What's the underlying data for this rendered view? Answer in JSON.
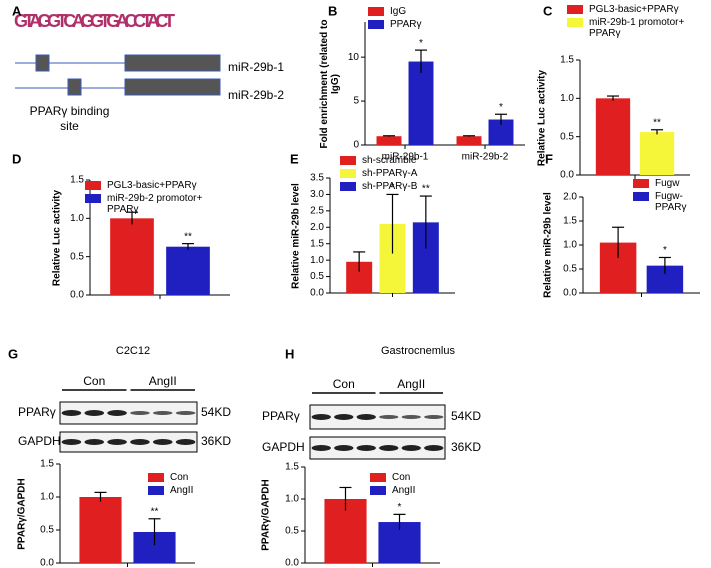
{
  "panel_labels": [
    "A",
    "B",
    "C",
    "D",
    "E",
    "F",
    "G",
    "H"
  ],
  "motif": {
    "sequence": "GTAGGTCAGGTGACCTACT"
  },
  "gene_diagram": {
    "genes": [
      "miR-29b-1",
      "miR-29b-2"
    ],
    "site_label": "PPARγ binding site"
  },
  "chart_data": [
    {
      "type": "bar",
      "y_label": "Fold enrichment (related to IgG)",
      "categories": [
        "miR-29b-1",
        "miR-29b-2"
      ],
      "series": [
        {
          "name": "IgG",
          "color": "#e02020",
          "values": [
            1,
            1
          ],
          "errors": [
            0.05,
            0.05
          ],
          "annotations": [
            null,
            null
          ]
        },
        {
          "name": "PPARγ",
          "color": "#2020c0",
          "values": [
            9.5,
            2.9
          ],
          "errors": [
            1.3,
            0.6
          ],
          "annotations": [
            "*",
            "*"
          ]
        }
      ],
      "ylim": [
        0,
        14
      ],
      "yticks": [
        0,
        5,
        10
      ]
    },
    {
      "type": "bar",
      "y_label": "Relative Luc activity",
      "categories": [
        null
      ],
      "series": [
        {
          "name": "PGL3-basic+PPARγ",
          "color": "#e02020",
          "values": [
            1.0
          ],
          "errors": [
            0.03
          ],
          "annotations": [
            null
          ]
        },
        {
          "name": "miR-29b-1 promotor+ PPARγ",
          "color": "#f5f53a",
          "values": [
            0.56
          ],
          "errors": [
            0.03
          ],
          "annotations": [
            "**"
          ]
        }
      ],
      "ylim": [
        0,
        1.5
      ],
      "yticks": [
        {
          "value": 0,
          "label": "0.0"
        },
        {
          "value": 0.5,
          "label": "0.5"
        },
        {
          "value": 1,
          "label": "1.0"
        },
        {
          "value": 1.5,
          "label": "1.5"
        }
      ]
    },
    {
      "type": "bar",
      "y_label": "Relative Luc activity",
      "categories": [
        null
      ],
      "series": [
        {
          "name": "PGL3-basic+PPARγ",
          "color": "#e02020",
          "values": [
            1.0
          ],
          "errors": [
            0.08
          ],
          "annotations": [
            null
          ]
        },
        {
          "name": "miR-29b-2 promotor+ PPARγ",
          "color": "#2020c0",
          "values": [
            0.63
          ],
          "errors": [
            0.04
          ],
          "annotations": [
            "**"
          ]
        }
      ],
      "ylim": [
        0,
        1.5
      ],
      "yticks": [
        {
          "value": 0,
          "label": "0.0"
        },
        {
          "value": 0.5,
          "label": "0.5"
        },
        {
          "value": 1,
          "label": "1.0"
        },
        {
          "value": 1.5,
          "label": "1.5"
        }
      ]
    },
    {
      "type": "bar",
      "y_label": "Relative miR-29b level",
      "categories": [
        null
      ],
      "series": [
        {
          "name": "sh-scramble",
          "color": "#e02020",
          "values": [
            0.95
          ],
          "errors": [
            0.3
          ],
          "annotations": [
            null
          ]
        },
        {
          "name": "sh-PPARγ-A",
          "color": "#f5f53a",
          "values": [
            2.1
          ],
          "errors": [
            0.9
          ],
          "annotations": [
            "*"
          ]
        },
        {
          "name": "sh-PPARγ-B",
          "color": "#2020c0",
          "values": [
            2.15
          ],
          "errors": [
            0.8
          ],
          "annotations": [
            "**"
          ]
        }
      ],
      "ylim": [
        0,
        3.5
      ],
      "yticks": [
        {
          "value": 0,
          "label": "0.0"
        },
        {
          "value": 0.5,
          "label": "0.5"
        },
        {
          "value": 1,
          "label": "1.0"
        },
        {
          "value": 1.5,
          "label": "1.5"
        },
        {
          "value": 2,
          "label": "2.0"
        },
        {
          "value": 2.5,
          "label": "2.5"
        },
        {
          "value": 3,
          "label": "3.0"
        },
        {
          "value": 3.5,
          "label": "3.5"
        }
      ]
    },
    {
      "type": "bar",
      "y_label": "Relative miR-29b level",
      "categories": [
        null
      ],
      "series": [
        {
          "name": "Fugw",
          "color": "#e02020",
          "values": [
            1.05
          ],
          "errors": [
            0.32
          ],
          "annotations": [
            null
          ]
        },
        {
          "name": "Fugw-PPARγ",
          "color": "#2020c0",
          "values": [
            0.57
          ],
          "errors": [
            0.17
          ],
          "annotations": [
            "*"
          ]
        }
      ],
      "ylim": [
        0,
        2
      ],
      "yticks": [
        {
          "value": 0,
          "label": "0.0"
        },
        {
          "value": 0.5,
          "label": "0.5"
        },
        {
          "value": 1,
          "label": "1.0"
        },
        {
          "value": 1.5,
          "label": "1.5"
        },
        {
          "value": 2,
          "label": "2.0"
        }
      ]
    },
    {
      "type": "bar",
      "y_label": "PPARγ/GAPDH",
      "categories": [
        null
      ],
      "series": [
        {
          "name": "Con",
          "color": "#e02020",
          "values": [
            1.0
          ],
          "errors": [
            0.07
          ],
          "annotations": [
            null
          ]
        },
        {
          "name": "AngII",
          "color": "#2020c0",
          "values": [
            0.47
          ],
          "errors": [
            0.2
          ],
          "annotations": [
            "**"
          ]
        }
      ],
      "ylim": [
        0,
        1.5
      ],
      "yticks": [
        {
          "value": 0,
          "label": "0.0"
        },
        {
          "value": 0.5,
          "label": "0.5"
        },
        {
          "value": 1,
          "label": "1.0"
        },
        {
          "value": 1.5,
          "label": "1.5"
        }
      ]
    },
    {
      "type": "bar",
      "y_label": "PPARγ/GAPDH",
      "categories": [
        null
      ],
      "series": [
        {
          "name": "Con",
          "color": "#e02020",
          "values": [
            1.0
          ],
          "errors": [
            0.18
          ],
          "annotations": [
            null
          ]
        },
        {
          "name": "AngII",
          "color": "#2020c0",
          "values": [
            0.64
          ],
          "errors": [
            0.12
          ],
          "annotations": [
            "*"
          ]
        }
      ],
      "ylim": [
        0,
        1.5
      ],
      "yticks": [
        {
          "value": 0,
          "label": "0.0"
        },
        {
          "value": 0.5,
          "label": "0.5"
        },
        {
          "value": 1,
          "label": "1.0"
        },
        {
          "value": 1.5,
          "label": "1.5"
        }
      ]
    }
  ],
  "blots": [
    {
      "title": "C2C12",
      "groups": [
        "Con",
        "AngII"
      ],
      "rows": [
        {
          "name": "PPARγ",
          "size": "54KD"
        },
        {
          "name": "GAPDH",
          "size": "36KD"
        }
      ]
    },
    {
      "title": "Gastrocnemlus",
      "groups": [
        "Con",
        "AngII"
      ],
      "rows": [
        {
          "name": "PPARγ",
          "size": "54KD"
        },
        {
          "name": "GAPDH",
          "size": "36KD"
        }
      ]
    }
  ]
}
